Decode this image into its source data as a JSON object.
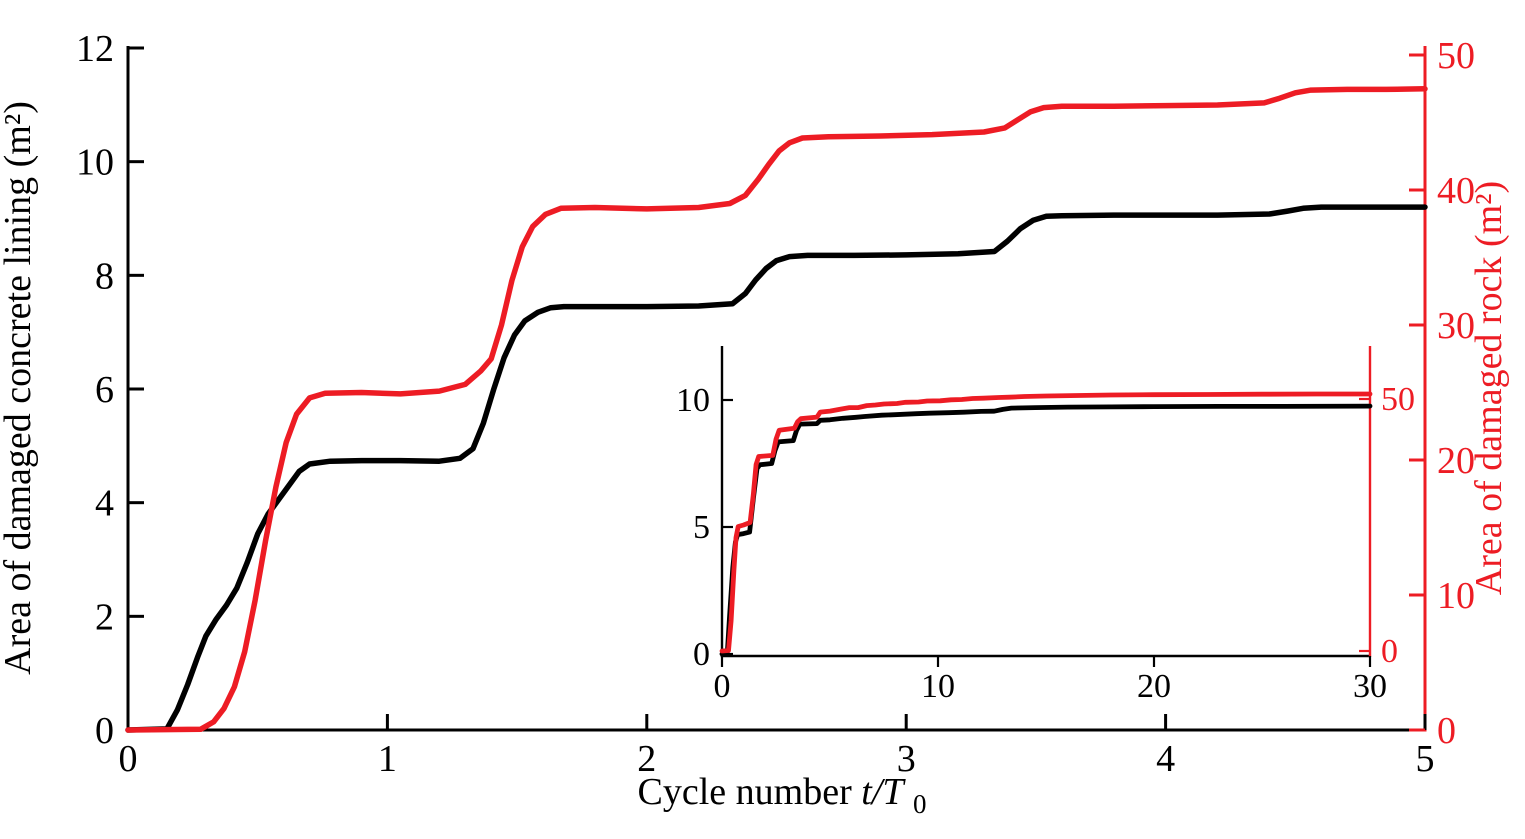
{
  "figure": {
    "background": "#ffffff",
    "accent_red": "#ED1C24",
    "axis_black": "#000000"
  },
  "chart_data": [
    {
      "type": "line",
      "role": "main",
      "title": "",
      "xlabel": "Cycle number t/T₀",
      "xlabel_parts": {
        "text": "Cycle number ",
        "var": "t/T",
        "sub": "0"
      },
      "ylabel_left": "Area of damaged concrete lining (m²)",
      "ylabel_right": "Area of damaged rock (m²)",
      "x_range": [
        0,
        5
      ],
      "y_left_range": [
        0,
        12
      ],
      "y_right_range": [
        0,
        50
      ],
      "x_ticks": [
        0,
        1,
        2,
        3,
        4,
        5
      ],
      "y_left_ticks": [
        0,
        2,
        4,
        6,
        8,
        10,
        12
      ],
      "y_right_ticks": [
        0,
        10,
        20,
        30,
        40,
        50
      ],
      "grid": false,
      "legend": "none",
      "series": [
        {
          "name": "Area of damaged concrete lining",
          "color": "#000000",
          "axis": "left",
          "x": [
            0,
            0.15,
            0.19,
            0.23,
            0.27,
            0.3,
            0.34,
            0.38,
            0.42,
            0.46,
            0.5,
            0.54,
            0.58,
            0.62,
            0.66,
            0.7,
            0.78,
            0.9,
            1.05,
            1.2,
            1.28,
            1.33,
            1.37,
            1.41,
            1.45,
            1.49,
            1.53,
            1.58,
            1.63,
            1.68,
            1.8,
            2.0,
            2.2,
            2.33,
            2.38,
            2.42,
            2.46,
            2.5,
            2.55,
            2.62,
            2.8,
            3.0,
            3.2,
            3.34,
            3.39,
            3.44,
            3.49,
            3.54,
            3.6,
            3.8,
            4.0,
            4.2,
            4.4,
            4.47,
            4.53,
            4.6,
            4.8,
            5.0
          ],
          "y": [
            0,
            0.02,
            0.35,
            0.8,
            1.3,
            1.65,
            1.95,
            2.2,
            2.5,
            2.95,
            3.45,
            3.8,
            4.05,
            4.3,
            4.55,
            4.68,
            4.73,
            4.74,
            4.74,
            4.73,
            4.78,
            4.95,
            5.4,
            6.0,
            6.55,
            6.95,
            7.2,
            7.35,
            7.43,
            7.45,
            7.45,
            7.45,
            7.46,
            7.5,
            7.68,
            7.92,
            8.12,
            8.26,
            8.33,
            8.35,
            8.35,
            8.36,
            8.38,
            8.42,
            8.6,
            8.82,
            8.97,
            9.04,
            9.05,
            9.06,
            9.06,
            9.06,
            9.08,
            9.13,
            9.18,
            9.2,
            9.2,
            9.2
          ]
        },
        {
          "name": "Area of damaged rock",
          "color": "#ED1C24",
          "axis": "right",
          "x": [
            0,
            0.28,
            0.33,
            0.37,
            0.41,
            0.45,
            0.49,
            0.53,
            0.57,
            0.61,
            0.65,
            0.7,
            0.76,
            0.9,
            1.05,
            1.2,
            1.3,
            1.36,
            1.4,
            1.44,
            1.48,
            1.52,
            1.56,
            1.61,
            1.67,
            1.8,
            2.0,
            2.2,
            2.32,
            2.38,
            2.43,
            2.47,
            2.51,
            2.55,
            2.6,
            2.7,
            2.9,
            3.1,
            3.3,
            3.38,
            3.43,
            3.48,
            3.53,
            3.6,
            3.8,
            4.0,
            4.2,
            4.38,
            4.44,
            4.5,
            4.56,
            4.7,
            4.85,
            5.0
          ],
          "y": [
            0,
            0.05,
            0.6,
            1.6,
            3.2,
            5.8,
            9.6,
            14.0,
            18.0,
            21.3,
            23.4,
            24.6,
            24.95,
            25.0,
            24.9,
            25.1,
            25.6,
            26.6,
            27.5,
            30.0,
            33.3,
            35.8,
            37.3,
            38.2,
            38.65,
            38.7,
            38.6,
            38.7,
            39.0,
            39.6,
            40.8,
            41.9,
            42.9,
            43.5,
            43.85,
            43.95,
            44.0,
            44.1,
            44.3,
            44.6,
            45.2,
            45.8,
            46.1,
            46.2,
            46.2,
            46.25,
            46.3,
            46.45,
            46.8,
            47.2,
            47.4,
            47.45,
            47.45,
            47.5
          ]
        }
      ]
    },
    {
      "type": "line",
      "role": "inset",
      "title": "",
      "x_range": [
        0,
        30
      ],
      "y_left_range": [
        0,
        12
      ],
      "y_right_range": [
        0,
        60
      ],
      "x_ticks": [
        0,
        10,
        20,
        30
      ],
      "y_left_ticks": [
        0,
        5,
        10
      ],
      "y_right_ticks": [
        0,
        50
      ],
      "grid": false,
      "legend": "none",
      "series": [
        {
          "name": "Area of damaged concrete lining (inset)",
          "color": "#000000",
          "axis": "left",
          "x": [
            0,
            0.25,
            0.35,
            0.5,
            0.62,
            0.72,
            1.0,
            1.28,
            1.45,
            1.62,
            1.75,
            2.3,
            2.45,
            2.6,
            3.3,
            3.45,
            3.6,
            4.4,
            4.55,
            5.0,
            5.6,
            6.2,
            6.6,
            7.4,
            8.0,
            9.0,
            9.6,
            10.5,
            11.2,
            12.0,
            12.6,
            13.0,
            13.4,
            14.5,
            16,
            18,
            20,
            23,
            26,
            30
          ],
          "y": [
            0,
            0.1,
            1.5,
            3.4,
            4.4,
            4.7,
            4.74,
            4.8,
            6.1,
            7.3,
            7.45,
            7.5,
            8.0,
            8.35,
            8.4,
            8.8,
            9.05,
            9.07,
            9.2,
            9.22,
            9.28,
            9.32,
            9.35,
            9.4,
            9.42,
            9.46,
            9.48,
            9.5,
            9.52,
            9.55,
            9.56,
            9.63,
            9.68,
            9.7,
            9.72,
            9.73,
            9.74,
            9.75,
            9.75,
            9.76
          ]
        },
        {
          "name": "Area of damaged rock (inset)",
          "color": "#ED1C24",
          "axis": "right",
          "x": [
            0,
            0.3,
            0.42,
            0.55,
            0.65,
            0.75,
            1.0,
            1.3,
            1.45,
            1.58,
            1.7,
            2.35,
            2.5,
            2.65,
            3.35,
            3.5,
            3.65,
            4.4,
            4.55,
            5.0,
            5.5,
            5.9,
            6.3,
            6.7,
            7.1,
            7.5,
            8.1,
            8.5,
            9.1,
            9.5,
            10.1,
            10.6,
            11.1,
            11.6,
            12.1,
            12.8,
            13.3,
            14.0,
            15,
            16.5,
            18,
            20,
            22.5,
            25,
            27.5,
            30
          ],
          "y": [
            0,
            0.1,
            6,
            16,
            22.5,
            24.7,
            25.0,
            25.5,
            31,
            37,
            38.6,
            38.8,
            42,
            43.8,
            44.2,
            45.5,
            46.1,
            46.4,
            47.4,
            47.6,
            48.0,
            48.3,
            48.3,
            48.7,
            48.8,
            49.0,
            49.1,
            49.35,
            49.4,
            49.6,
            49.65,
            49.85,
            49.9,
            50.1,
            50.15,
            50.3,
            50.35,
            50.5,
            50.6,
            50.7,
            50.8,
            50.85,
            50.9,
            50.95,
            51.0,
            51.0
          ]
        }
      ]
    }
  ]
}
